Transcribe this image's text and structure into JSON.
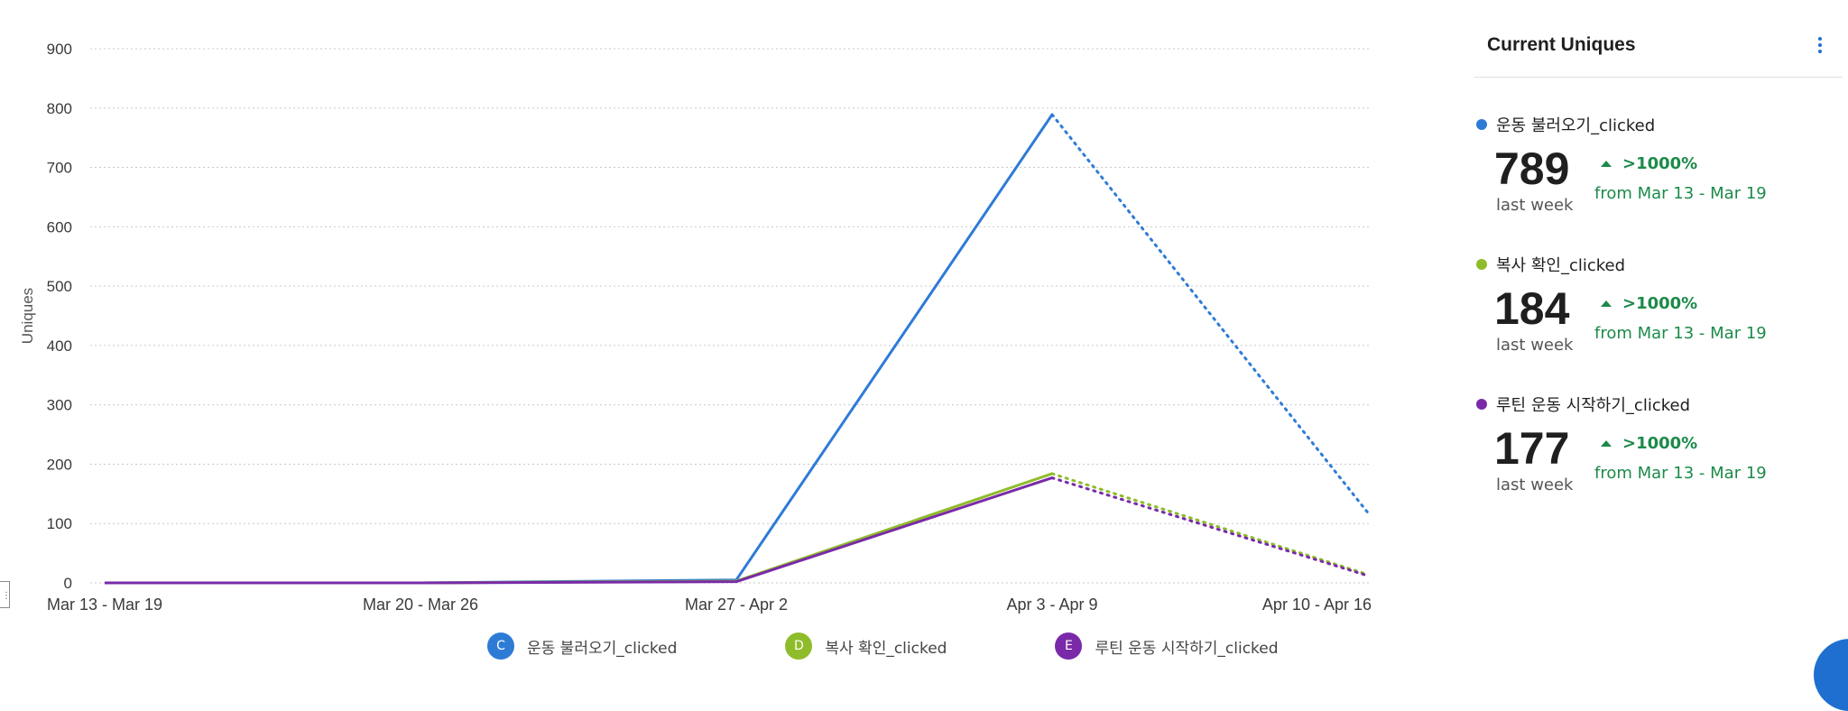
{
  "chart_data": {
    "type": "line",
    "categories": [
      "Mar 13 - Mar 19",
      "Mar 20 - Mar 26",
      "Mar 27 - Apr 2",
      "Apr 3 - Apr 9",
      "Apr 10 - Apr 16"
    ],
    "ylabel": "Uniques",
    "ylim": [
      0,
      900
    ],
    "yticks": [
      0,
      100,
      200,
      300,
      400,
      500,
      600,
      700,
      800,
      900
    ],
    "grid": true,
    "legend_position": "bottom",
    "incomplete_last_period": true,
    "series": [
      {
        "name": "운동 불러오기_clicked",
        "badge": "C",
        "color": "#2e7bd6",
        "values": [
          0,
          0,
          5,
          789,
          118
        ]
      },
      {
        "name": "복사 확인_clicked",
        "badge": "D",
        "color": "#8fbc2a",
        "values": [
          0,
          0,
          3,
          184,
          14
        ]
      },
      {
        "name": "루틴 운동 시작하기_clicked",
        "badge": "E",
        "color": "#7a2aa8",
        "values": [
          0,
          0,
          2,
          177,
          12
        ]
      }
    ]
  },
  "panel": {
    "title": "Current Uniques",
    "menu_icon": "kebab-vertical-icon",
    "metrics": [
      {
        "name": "운동 불러오기_clicked",
        "color": "#2e7bd6",
        "value": "789",
        "sub": "last week",
        "change": ">1000%",
        "from": "from Mar 13 - Mar 19"
      },
      {
        "name": "복사 확인_clicked",
        "color": "#8fbc2a",
        "value": "184",
        "sub": "last week",
        "change": ">1000%",
        "from": "from Mar 13 - Mar 19"
      },
      {
        "name": "루틴 운동 시작하기_clicked",
        "color": "#7a2aa8",
        "value": "177",
        "sub": "last week",
        "change": ">1000%",
        "from": "from Mar 13 - Mar 19"
      }
    ]
  },
  "colors": {
    "positive": "#1c8a4a",
    "grid": "#c9c9c9"
  }
}
